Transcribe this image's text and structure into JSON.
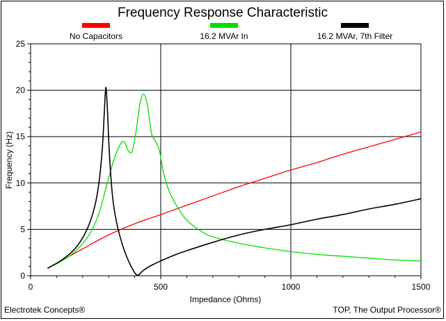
{
  "chart_data": {
    "type": "line",
    "title": "Frequency Response Characteristic",
    "xlabel": "Impedance (Ohms)",
    "ylabel": "Frequency (Hz)",
    "xlim": [
      0,
      1500
    ],
    "ylim": [
      0,
      25
    ],
    "x_ticks": [
      "0",
      "500",
      "1000",
      "1500"
    ],
    "y_ticks": [
      "0",
      "5",
      "10",
      "15",
      "20",
      "25"
    ],
    "grid": true,
    "legend_position": "top",
    "series": [
      {
        "name": "No Capacitors",
        "color": "#ff0000",
        "points": [
          [
            65,
            0.8
          ],
          [
            200,
            2.9
          ],
          [
            300,
            4.4
          ],
          [
            400,
            5.6
          ],
          [
            500,
            6.6
          ],
          [
            600,
            7.6
          ],
          [
            700,
            8.6
          ],
          [
            800,
            9.6
          ],
          [
            900,
            10.5
          ],
          [
            1000,
            11.4
          ],
          [
            1100,
            12.2
          ],
          [
            1200,
            13.1
          ],
          [
            1300,
            13.9
          ],
          [
            1400,
            14.7
          ],
          [
            1500,
            15.5
          ]
        ]
      },
      {
        "name": "16.2 MVAr In",
        "color": "#00dd00",
        "points": [
          [
            65,
            0.8
          ],
          [
            120,
            1.6
          ],
          [
            170,
            2.6
          ],
          [
            220,
            4.2
          ],
          [
            260,
            6.5
          ],
          [
            290,
            9.5
          ],
          [
            320,
            12.5
          ],
          [
            345,
            14.2
          ],
          [
            360,
            14.4
          ],
          [
            375,
            13.5
          ],
          [
            390,
            13.4
          ],
          [
            405,
            15.5
          ],
          [
            420,
            18.5
          ],
          [
            435,
            19.6
          ],
          [
            450,
            18.2
          ],
          [
            465,
            15.3
          ],
          [
            480,
            14.5
          ],
          [
            495,
            13.5
          ],
          [
            510,
            11.2
          ],
          [
            530,
            9.3
          ],
          [
            560,
            7.6
          ],
          [
            600,
            6.0
          ],
          [
            650,
            4.9
          ],
          [
            700,
            4.2
          ],
          [
            800,
            3.5
          ],
          [
            900,
            3.0
          ],
          [
            1000,
            2.6
          ],
          [
            1100,
            2.3
          ],
          [
            1200,
            2.1
          ],
          [
            1300,
            1.9
          ],
          [
            1400,
            1.7
          ],
          [
            1500,
            1.6
          ]
        ]
      },
      {
        "name": "16.2 MVAr, 7th Filter",
        "color": "#000000",
        "points": [
          [
            65,
            0.8
          ],
          [
            120,
            1.7
          ],
          [
            170,
            2.9
          ],
          [
            210,
            4.6
          ],
          [
            240,
            6.8
          ],
          [
            260,
            9.5
          ],
          [
            275,
            13.5
          ],
          [
            283,
            17.5
          ],
          [
            289,
            20.3
          ],
          [
            295,
            18.0
          ],
          [
            303,
            13.0
          ],
          [
            315,
            8.5
          ],
          [
            330,
            5.8
          ],
          [
            350,
            3.6
          ],
          [
            370,
            2.0
          ],
          [
            390,
            0.8
          ],
          [
            405,
            0.15
          ],
          [
            415,
            0.1
          ],
          [
            430,
            0.5
          ],
          [
            450,
            0.9
          ],
          [
            470,
            1.2
          ],
          [
            500,
            1.6
          ],
          [
            550,
            2.2
          ],
          [
            600,
            2.7
          ],
          [
            700,
            3.6
          ],
          [
            800,
            4.4
          ],
          [
            900,
            5.0
          ],
          [
            1000,
            5.5
          ],
          [
            1100,
            6.1
          ],
          [
            1200,
            6.6
          ],
          [
            1300,
            7.2
          ],
          [
            1400,
            7.7
          ],
          [
            1500,
            8.3
          ]
        ]
      }
    ]
  },
  "footer": {
    "left": "Electrotek Concepts®",
    "right": "TOP, The Output Processor®"
  }
}
